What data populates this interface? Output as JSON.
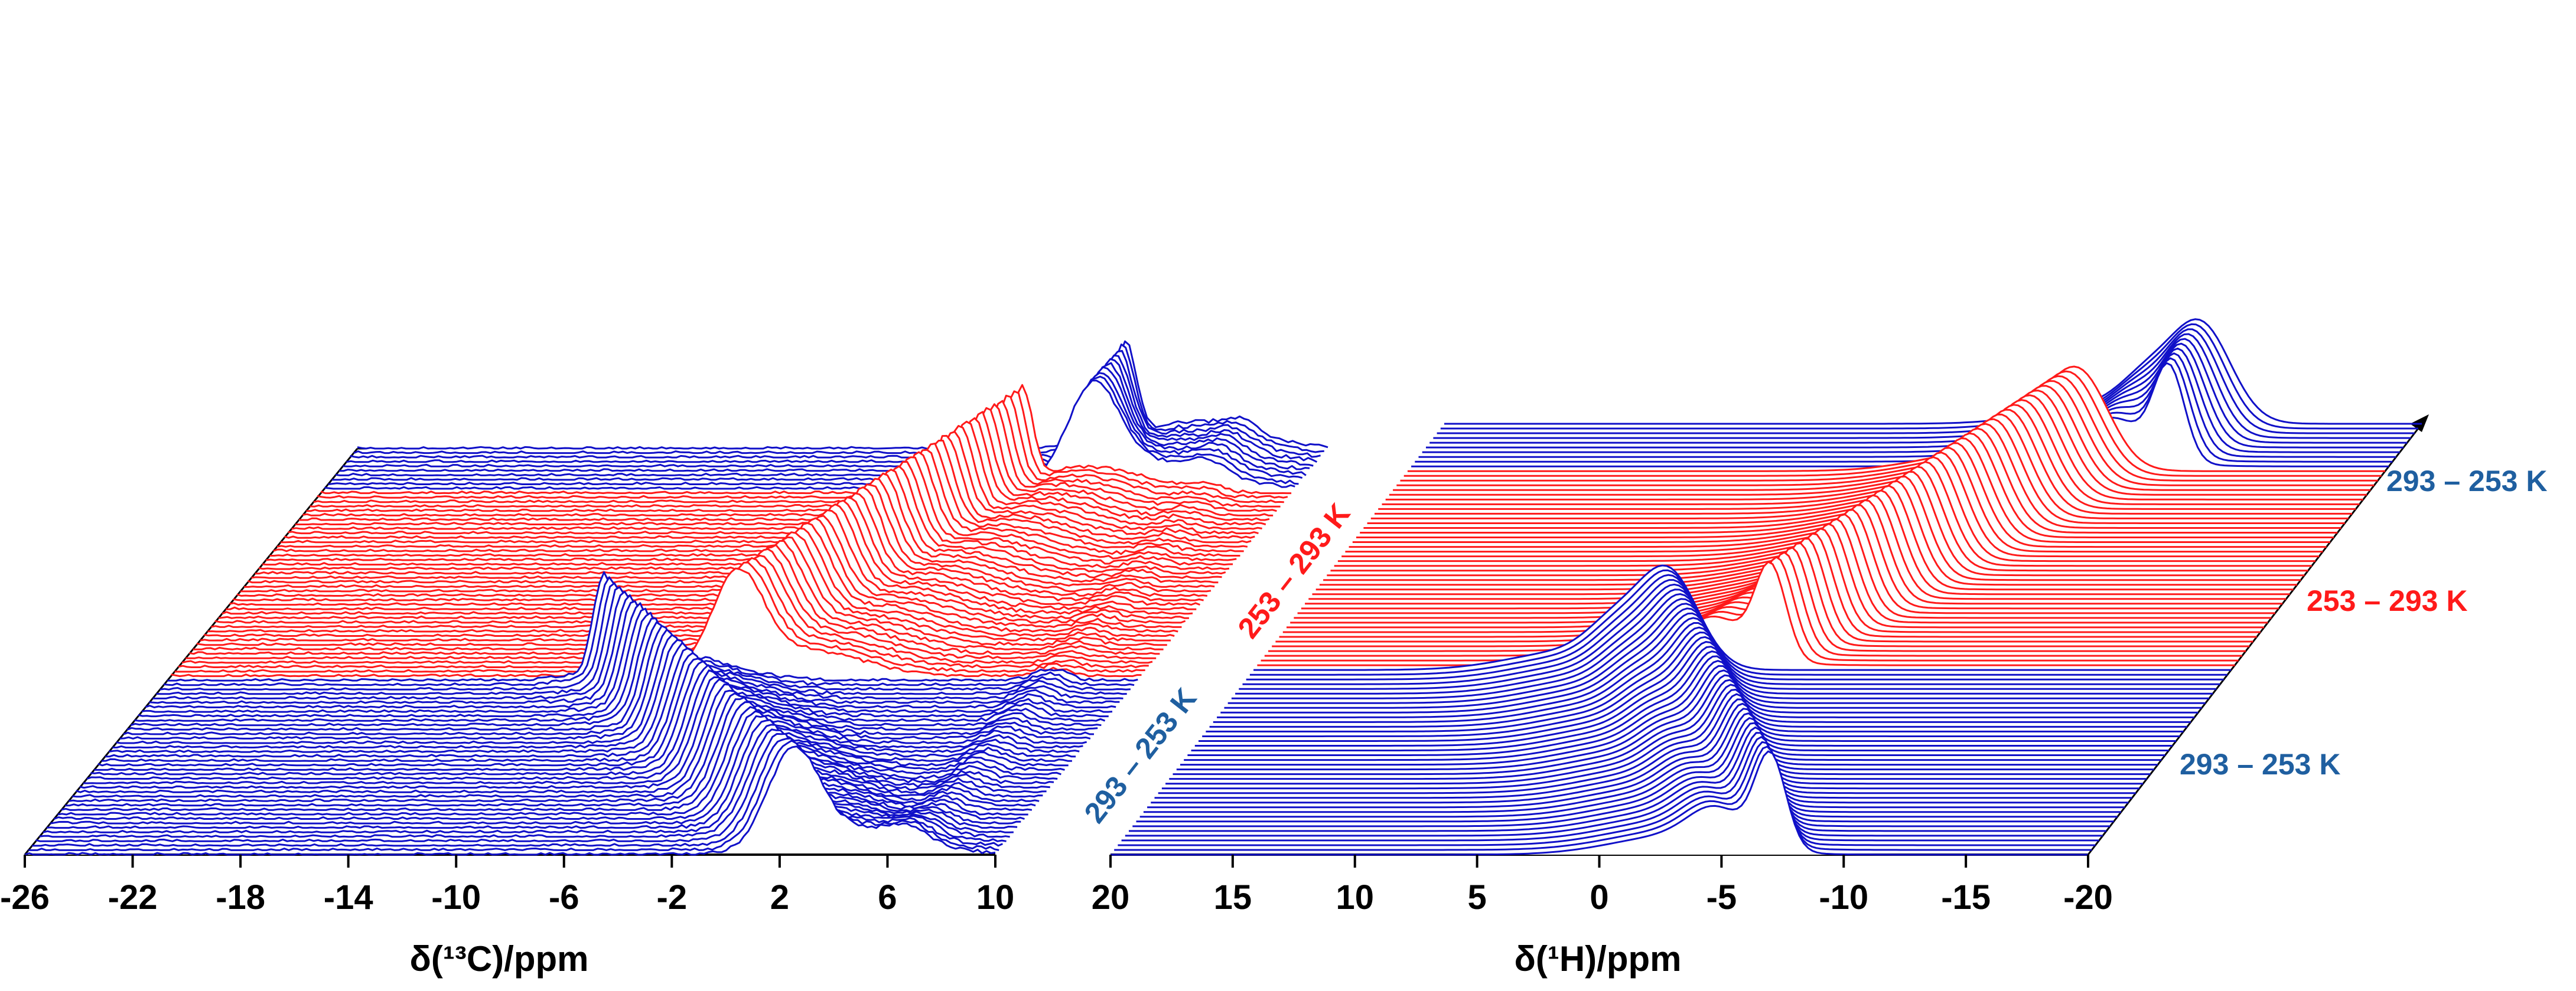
{
  "colors": {
    "cooling": "#1010c8",
    "heating": "#ff1a1a",
    "label_blue": "#1f5fa0",
    "label_red": "#ff1a1a"
  },
  "chart_data": [
    {
      "type": "line",
      "subtype": "stacked-waterfall",
      "xlabel": "δ(¹³C)/ppm",
      "xlim": [
        -26,
        10
      ],
      "x_ticks": [
        "-26",
        "-22",
        "-18",
        "-14",
        "-10",
        "-6",
        "-2",
        "2",
        "6",
        "10"
      ],
      "series": [
        {
          "name": "293 – 253 K",
          "color": "cooling",
          "count": 40,
          "start_peak": 2.5,
          "end_peak": -9.8
        },
        {
          "name": "253 – 293 K",
          "color": "heating",
          "count": 42,
          "start_peak": -5,
          "end_peak": 0
        },
        {
          "name": "293 – 253 K",
          "color": "cooling",
          "count": 10,
          "start_peak": 2.5,
          "end_peak": 2.5
        }
      ]
    },
    {
      "type": "line",
      "subtype": "stacked-waterfall",
      "xlabel": "δ(¹H)/ppm",
      "xlim": [
        20,
        -20
      ],
      "x_ticks": [
        "20",
        "15",
        "10",
        "5",
        "0",
        "-5",
        "-10",
        "-15",
        "-20"
      ],
      "series": [
        {
          "name": "293 – 253 K",
          "color": "cooling",
          "count": 40,
          "start_peak": -7,
          "end_peak": 3
        },
        {
          "name": "253 – 293 K",
          "color": "heating",
          "count": 42,
          "start_peak": -1,
          "end_peak": -7.5
        },
        {
          "name": "293 – 253 K",
          "color": "cooling",
          "count": 10,
          "start_peak": -11,
          "end_peak": -11
        }
      ]
    }
  ],
  "labels": {
    "left_rotated": "293 – 253 K",
    "middle_rotated": "253 – 293 K",
    "right_top": "293 – 253 K",
    "right_middle": "253 – 293 K",
    "right_bottom": "293 – 253 K"
  }
}
